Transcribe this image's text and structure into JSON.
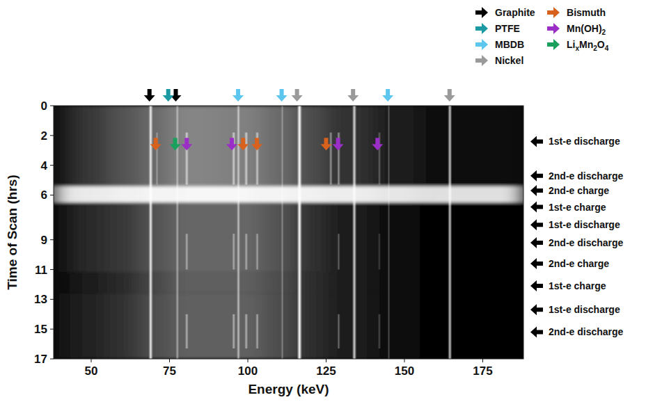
{
  "chart_data": {
    "type": "heatmap",
    "x_label": "Energy (keV)",
    "y_label": "Time of Scan (hrs)",
    "xlim": [
      38,
      188
    ],
    "xticks": [
      50,
      75,
      100,
      125,
      150,
      175
    ],
    "ylim": [
      0,
      17
    ],
    "yticks": [
      0,
      2,
      4,
      6,
      9,
      11,
      13,
      15,
      17
    ],
    "legend": "top-right",
    "materials": [
      {
        "name": "Graphite",
        "color": "#000000"
      },
      {
        "name": "PTFE",
        "color": "#1b9aa3"
      },
      {
        "name": "MBDB",
        "color": "#5cc6ef"
      },
      {
        "name": "Nickel",
        "color": "#9a9a9a"
      },
      {
        "name": "Bismuth",
        "color": "#d8611e"
      },
      {
        "name": "Mn(OH)2",
        "color": "#9a2ec6"
      },
      {
        "name": "LixMn2O4",
        "color": "#19a05c"
      }
    ],
    "markers": [
      {
        "material": 0,
        "energy": 68.6
      },
      {
        "material": 0,
        "energy": 77.0
      },
      {
        "material": 1,
        "energy": 74.6
      },
      {
        "material": 2,
        "energy": 96.9
      },
      {
        "material": 2,
        "energy": 110.8
      },
      {
        "material": 2,
        "energy": 144.7
      },
      {
        "material": 3,
        "energy": 115.7
      },
      {
        "material": 3,
        "energy": 133.6
      },
      {
        "material": 3,
        "energy": 164.4
      },
      {
        "material": 4,
        "energy": 70.6,
        "time": 3.0
      },
      {
        "material": 4,
        "energy": 98.5,
        "time": 3.0
      },
      {
        "material": 4,
        "energy": 102.9,
        "time": 3.0
      },
      {
        "material": 4,
        "energy": 125.0,
        "time": 3.0
      },
      {
        "material": 6,
        "energy": 76.8,
        "time": 3.0
      },
      {
        "material": 5,
        "energy": 80.5,
        "time": 3.0
      },
      {
        "material": 5,
        "energy": 94.9,
        "time": 3.0
      },
      {
        "material": 5,
        "energy": 128.8,
        "time": 3.0
      },
      {
        "material": 5,
        "energy": 141.4,
        "time": 3.0
      }
    ],
    "annotations": [
      {
        "label": "1st-e discharge",
        "time": 2.4
      },
      {
        "label": "2nd-e discharge",
        "time": 4.7
      },
      {
        "label": "2nd-e charge",
        "time": 5.7
      },
      {
        "label": "1st-e charge",
        "time": 6.8
      },
      {
        "label": "1st-e discharge",
        "time": 8.0
      },
      {
        "label": "2nd-e discharge",
        "time": 9.2
      },
      {
        "label": "2nd-e charge",
        "time": 10.6
      },
      {
        "label": "1st-e charge",
        "time": 12.1
      },
      {
        "label": "1st-e discharge",
        "time": 13.7
      },
      {
        "label": "2nd-e discharge",
        "time": 15.2
      }
    ],
    "cells": {
      "x_edges": [
        38,
        45,
        55,
        65,
        75,
        90,
        105,
        115,
        125,
        140,
        155,
        188
      ],
      "y_edges": [
        0,
        5.4,
        6.5,
        11.2,
        12.6,
        17
      ],
      "values": [
        [
          0.12,
          0.22,
          0.32,
          0.42,
          0.52,
          0.5,
          0.42,
          0.3,
          0.2,
          0.1,
          0.04
        ],
        [
          0.9,
          0.92,
          0.95,
          0.96,
          0.97,
          0.97,
          0.96,
          0.95,
          0.93,
          0.9,
          0.88
        ],
        [
          0.08,
          0.16,
          0.22,
          0.32,
          0.4,
          0.4,
          0.32,
          0.2,
          0.12,
          0.05,
          0.02
        ],
        [
          0.05,
          0.1,
          0.17,
          0.28,
          0.37,
          0.37,
          0.3,
          0.18,
          0.1,
          0.04,
          0.02
        ],
        [
          0.07,
          0.14,
          0.2,
          0.3,
          0.38,
          0.38,
          0.3,
          0.18,
          0.1,
          0.04,
          0.02
        ]
      ]
    },
    "peaks": [
      {
        "energy": 69,
        "t0": 0,
        "t1": 17,
        "intensity": 0.85
      },
      {
        "energy": 77.5,
        "t0": 0,
        "t1": 17,
        "intensity": 0.45
      },
      {
        "energy": 97,
        "t0": 0,
        "t1": 17,
        "intensity": 0.55
      },
      {
        "energy": 111,
        "t0": 0,
        "t1": 17,
        "intensity": 0.3
      },
      {
        "energy": 116.5,
        "t0": 0,
        "t1": 17,
        "intensity": 1
      },
      {
        "energy": 134,
        "t0": 0,
        "t1": 17,
        "intensity": 0.8
      },
      {
        "energy": 145,
        "t0": 0,
        "t1": 17,
        "intensity": 0.25
      },
      {
        "energy": 164.5,
        "t0": 0,
        "t1": 17,
        "intensity": 0.75
      },
      {
        "energy": 71,
        "t0": 1.8,
        "t1": 5.3,
        "intensity": 0.3
      },
      {
        "energy": 80.5,
        "t0": 1.8,
        "t1": 5.3,
        "intensity": 0.6
      },
      {
        "energy": 95.5,
        "t0": 1.8,
        "t1": 5.3,
        "intensity": 0.6
      },
      {
        "energy": 99.5,
        "t0": 1.8,
        "t1": 5.3,
        "intensity": 0.6
      },
      {
        "energy": 103,
        "t0": 1.8,
        "t1": 5.3,
        "intensity": 0.55
      },
      {
        "energy": 126.5,
        "t0": 1.8,
        "t1": 5.3,
        "intensity": 0.45
      },
      {
        "energy": 129,
        "t0": 1.8,
        "t1": 5.3,
        "intensity": 0.45
      },
      {
        "energy": 142,
        "t0": 1.8,
        "t1": 5.3,
        "intensity": 0.3
      },
      {
        "energy": 80.5,
        "t0": 8.6,
        "t1": 11,
        "intensity": 0.45
      },
      {
        "energy": 95.5,
        "t0": 8.6,
        "t1": 11,
        "intensity": 0.45
      },
      {
        "energy": 99.5,
        "t0": 8.6,
        "t1": 11,
        "intensity": 0.45
      },
      {
        "energy": 103,
        "t0": 8.6,
        "t1": 11,
        "intensity": 0.4
      },
      {
        "energy": 129,
        "t0": 8.6,
        "t1": 11,
        "intensity": 0.3
      },
      {
        "energy": 142,
        "t0": 8.6,
        "t1": 11,
        "intensity": 0.2
      },
      {
        "energy": 80.5,
        "t0": 14,
        "t1": 16.3,
        "intensity": 0.5
      },
      {
        "energy": 95.5,
        "t0": 14,
        "t1": 16.3,
        "intensity": 0.5
      },
      {
        "energy": 99.5,
        "t0": 14,
        "t1": 16.3,
        "intensity": 0.5
      },
      {
        "energy": 103,
        "t0": 14,
        "t1": 16.3,
        "intensity": 0.45
      },
      {
        "energy": 129,
        "t0": 14,
        "t1": 16.3,
        "intensity": 0.35
      },
      {
        "energy": 142,
        "t0": 14,
        "t1": 16.3,
        "intensity": 0.25
      }
    ]
  }
}
